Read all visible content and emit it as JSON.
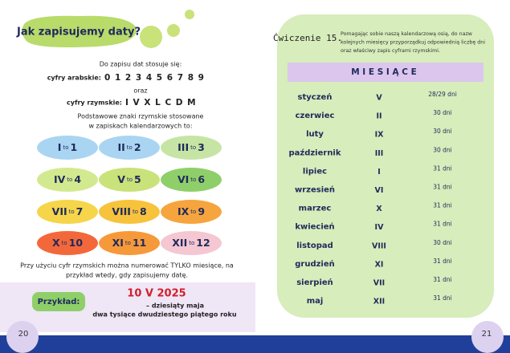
{
  "left_page": {
    "title": "Jak zapisujemy daty?",
    "intro": "Do zapisu dat stosuje się:",
    "arabic_label": "cyfry arabskie:",
    "arabic_digits": "0 1 2 3 4 5 6 7 8 9",
    "conjunction": "oraz",
    "roman_label": "cyfry rzymskie:",
    "roman_digits": "I V X L C D M",
    "basic_note": [
      "Podstawowe znaki rzymskie stosowane",
      "w zapiskach kalendarzowych to:"
    ],
    "connector": "to",
    "numerals": [
      {
        "roman": "I",
        "arabic": 1,
        "color": "#a9d5f2"
      },
      {
        "roman": "II",
        "arabic": 2,
        "color": "#a9d5f2"
      },
      {
        "roman": "III",
        "arabic": 3,
        "color": "#c6e5a4"
      },
      {
        "roman": "IV",
        "arabic": 4,
        "color": "#d3e98f"
      },
      {
        "roman": "V",
        "arabic": 5,
        "color": "#c9e27a"
      },
      {
        "roman": "VI",
        "arabic": 6,
        "color": "#8fcf6a"
      },
      {
        "roman": "VII",
        "arabic": 7,
        "color": "#f6d54a"
      },
      {
        "roman": "VIII",
        "arabic": 8,
        "color": "#f7c33c"
      },
      {
        "roman": "IX",
        "arabic": 9,
        "color": "#f6a53e"
      },
      {
        "roman": "X",
        "arabic": 10,
        "color": "#f3683b"
      },
      {
        "roman": "XI",
        "arabic": 11,
        "color": "#f6993a"
      },
      {
        "roman": "XII",
        "arabic": 12,
        "color": "#f4c7d2"
      }
    ],
    "note": [
      "Przy użyciu cyfr rzymskich można numerować TYLKO miesiące, na",
      "przykład wtedy, gdy zapisujemy datę."
    ],
    "example": {
      "label": "Przykład:",
      "date": "10 V 2025",
      "line1": "– dziesiąty maja",
      "line2": "dwa tysiące dwudziestego piątego roku"
    },
    "page_number": 20
  },
  "right_page": {
    "exercise": "Ćwiczenie 15.",
    "instruction": [
      "Pomagając sobie naszą kalendarzową osią, do nazw",
      "kolejnych miesięcy przyporządkuj odpowiednią liczbę dni",
      "oraz właściwy zapis cyframi rzymskimi."
    ],
    "table": {
      "header": "M I E S I Ą C E",
      "rows": [
        [
          "styczeń",
          "V",
          "28/29 dni"
        ],
        [
          "czerwiec",
          "II",
          "30 dni"
        ],
        [
          "luty",
          "IX",
          "30 dni"
        ],
        [
          "październik",
          "III",
          "30 dni"
        ],
        [
          "lipiec",
          "I",
          "31 dni"
        ],
        [
          "wrzesień",
          "VI",
          "31 dni"
        ],
        [
          "marzec",
          "X",
          "31 dni"
        ],
        [
          "kwiecień",
          "IV",
          "31 dni"
        ],
        [
          "listopad",
          "VIII",
          "30 dni"
        ],
        [
          "grudzień",
          "XI",
          "31 dni"
        ],
        [
          "sierpień",
          "VII",
          "31 dni"
        ],
        [
          "maj",
          "XII",
          "31 dni"
        ]
      ]
    },
    "page_number": 21
  }
}
